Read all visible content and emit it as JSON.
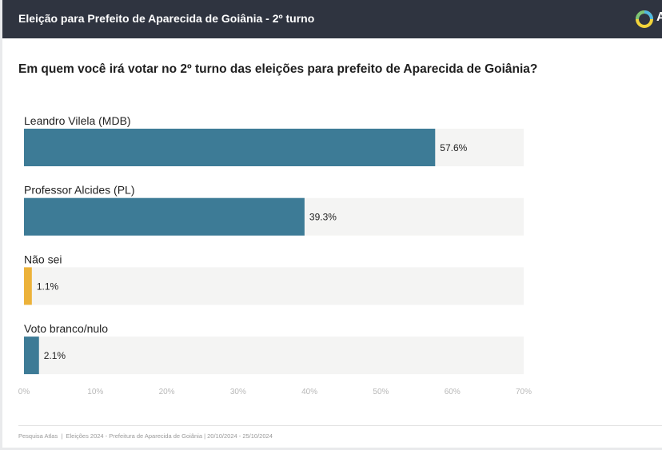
{
  "header": {
    "title": "Eleição para Prefeito de Aparecida de Goiânia - 2º turno",
    "logo_letter": "A"
  },
  "question": "Em quem você irá votar no 2º turno das eleições para prefeito de Aparecida de Goiânia?",
  "chart_data": {
    "type": "bar",
    "orientation": "horizontal",
    "title": "Em quem você irá votar no 2º turno das eleições para prefeito de Aparecida de Goiânia?",
    "categories": [
      "Leandro Vilela (MDB)",
      "Professor Alcides (PL)",
      "Não sei",
      "Voto branco/nulo"
    ],
    "values": [
      57.6,
      39.3,
      1.1,
      2.1
    ],
    "data_labels": [
      "57.6%",
      "39.3%",
      "1.1%",
      "2.1%"
    ],
    "colors": [
      "#3d7b96",
      "#3d7b96",
      "#ecb23a",
      "#3d7b96"
    ],
    "track_color": "#f4f4f3",
    "xlim": [
      0,
      70
    ],
    "xticks": [
      0,
      10,
      20,
      30,
      40,
      50,
      60,
      70
    ],
    "xtick_labels": [
      "0%",
      "10%",
      "20%",
      "30%",
      "40%",
      "50%",
      "60%",
      "70%"
    ],
    "xlabel": "",
    "ylabel": "",
    "grid": false
  },
  "footer": "Pesquisa Atlas  |  Eleições 2024 - Prefeitura de Aparecida de Goiânia | 20/10/2024 - 25/10/2024"
}
